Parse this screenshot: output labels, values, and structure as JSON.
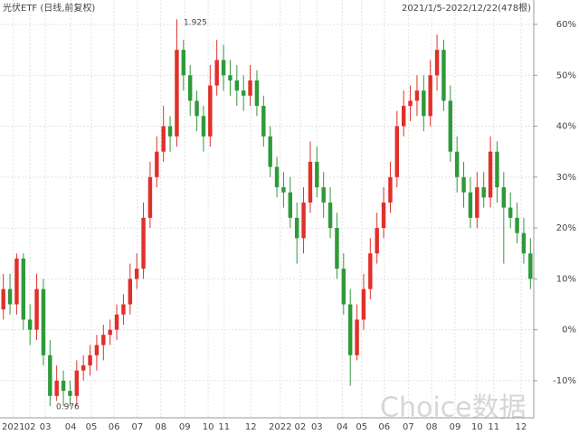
{
  "chart_data": {
    "type": "candlestick",
    "title": "光伏ETF (日线,前复权)",
    "subtitle": "2021/1/5-2022/12/22(478根)",
    "watermark": "Choice数据",
    "annotations": [
      "1.925",
      "0.976"
    ],
    "up_color": "#e0302a",
    "down_color": "#2e9a3a",
    "grid": true,
    "xlim": [
      0,
      80
    ],
    "ylim": [
      -17.3,
      64.8
    ],
    "yticks": [
      {
        "value": 60,
        "label": "60%"
      },
      {
        "value": 50,
        "label": "50%"
      },
      {
        "value": 40,
        "label": "40%"
      },
      {
        "value": 30,
        "label": "30%"
      },
      {
        "value": 20,
        "label": "20%"
      },
      {
        "value": 10,
        "label": "10%"
      },
      {
        "value": 0,
        "label": "0%"
      },
      {
        "value": -10,
        "label": "-10%"
      }
    ],
    "xticks": [
      {
        "value": 2.0,
        "label": "2021"
      },
      {
        "value": 4.5,
        "label": "02"
      },
      {
        "value": 6.8,
        "label": "03"
      },
      {
        "value": 10.6,
        "label": "04"
      },
      {
        "value": 13.7,
        "label": "05"
      },
      {
        "value": 17.1,
        "label": "06"
      },
      {
        "value": 20.6,
        "label": "07"
      },
      {
        "value": 24.1,
        "label": "08"
      },
      {
        "value": 27.7,
        "label": "09"
      },
      {
        "value": 31.2,
        "label": "10"
      },
      {
        "value": 33.6,
        "label": "11"
      },
      {
        "value": 37.6,
        "label": "12"
      },
      {
        "value": 42.0,
        "label": "2022"
      },
      {
        "value": 45.0,
        "label": "02"
      },
      {
        "value": 47.5,
        "label": "03"
      },
      {
        "value": 51.3,
        "label": "04"
      },
      {
        "value": 54.2,
        "label": "05"
      },
      {
        "value": 57.6,
        "label": "06"
      },
      {
        "value": 61.2,
        "label": "07"
      },
      {
        "value": 64.7,
        "label": "08"
      },
      {
        "value": 68.2,
        "label": "09"
      },
      {
        "value": 71.5,
        "label": "10"
      },
      {
        "value": 74.0,
        "label": "11"
      },
      {
        "value": 78.1,
        "label": "12"
      }
    ],
    "open": [
      4,
      8,
      5,
      14,
      2,
      0,
      8,
      -5,
      -13,
      -10,
      -12,
      -13,
      -8,
      -7,
      -5,
      -3,
      -1,
      0,
      3,
      5,
      10,
      12,
      22,
      30,
      35,
      40,
      38,
      55,
      50,
      45,
      42,
      38,
      48,
      53,
      50,
      49,
      47,
      46,
      49,
      44,
      38,
      32,
      28,
      27,
      22,
      18,
      25,
      33,
      28,
      25,
      20,
      12,
      5,
      -5,
      2,
      8,
      15,
      20,
      25,
      30,
      40,
      44,
      45,
      47,
      42,
      50,
      55,
      45,
      35,
      30,
      27,
      22,
      28,
      26,
      35,
      28,
      24,
      22,
      19,
      15
    ],
    "close": [
      8,
      5,
      14,
      2,
      0,
      8,
      -5,
      -13,
      -10,
      -12,
      -13,
      -8,
      -7,
      -5,
      -3,
      -1,
      0,
      3,
      5,
      10,
      12,
      22,
      30,
      35,
      40,
      38,
      55,
      50,
      45,
      42,
      38,
      48,
      53,
      50,
      49,
      47,
      46,
      49,
      44,
      38,
      32,
      28,
      27,
      22,
      18,
      25,
      33,
      28,
      25,
      20,
      12,
      5,
      -5,
      2,
      8,
      15,
      20,
      25,
      30,
      40,
      44,
      45,
      47,
      42,
      50,
      55,
      45,
      35,
      30,
      27,
      22,
      28,
      26,
      35,
      28,
      24,
      22,
      19,
      15,
      10
    ],
    "high": [
      11,
      11,
      15,
      15,
      5,
      11,
      10,
      -2,
      -7,
      -8,
      -10,
      -6,
      -5,
      -3,
      -1,
      1,
      2,
      5,
      7,
      13,
      15,
      25,
      33,
      38,
      44,
      42,
      61,
      57,
      52,
      47,
      44,
      52,
      57,
      56,
      53,
      52,
      50,
      52,
      51,
      46,
      40,
      34,
      31,
      30,
      25,
      28,
      37,
      36,
      31,
      28,
      23,
      15,
      8,
      5,
      11,
      18,
      23,
      28,
      33,
      43,
      47,
      48,
      50,
      50,
      53,
      58,
      57,
      48,
      38,
      33,
      30,
      31,
      31,
      38,
      37,
      31,
      27,
      25,
      22,
      18
    ],
    "low": [
      2,
      3,
      3,
      0,
      -3,
      -2,
      -7,
      -15,
      -14,
      -15,
      -15,
      -15,
      -10,
      -9,
      -8,
      -6,
      -3,
      -2,
      1,
      3,
      8,
      10,
      20,
      28,
      33,
      35,
      36,
      47,
      42,
      39,
      35,
      36,
      46,
      47,
      46,
      44,
      43,
      44,
      42,
      36,
      30,
      26,
      24,
      20,
      13,
      15,
      23,
      26,
      22,
      18,
      10,
      3,
      -11,
      -6,
      0,
      6,
      13,
      18,
      23,
      28,
      38,
      41,
      42,
      39,
      40,
      47,
      43,
      33,
      27,
      24,
      20,
      20,
      24,
      24,
      25,
      13,
      20,
      17,
      13,
      8
    ]
  }
}
